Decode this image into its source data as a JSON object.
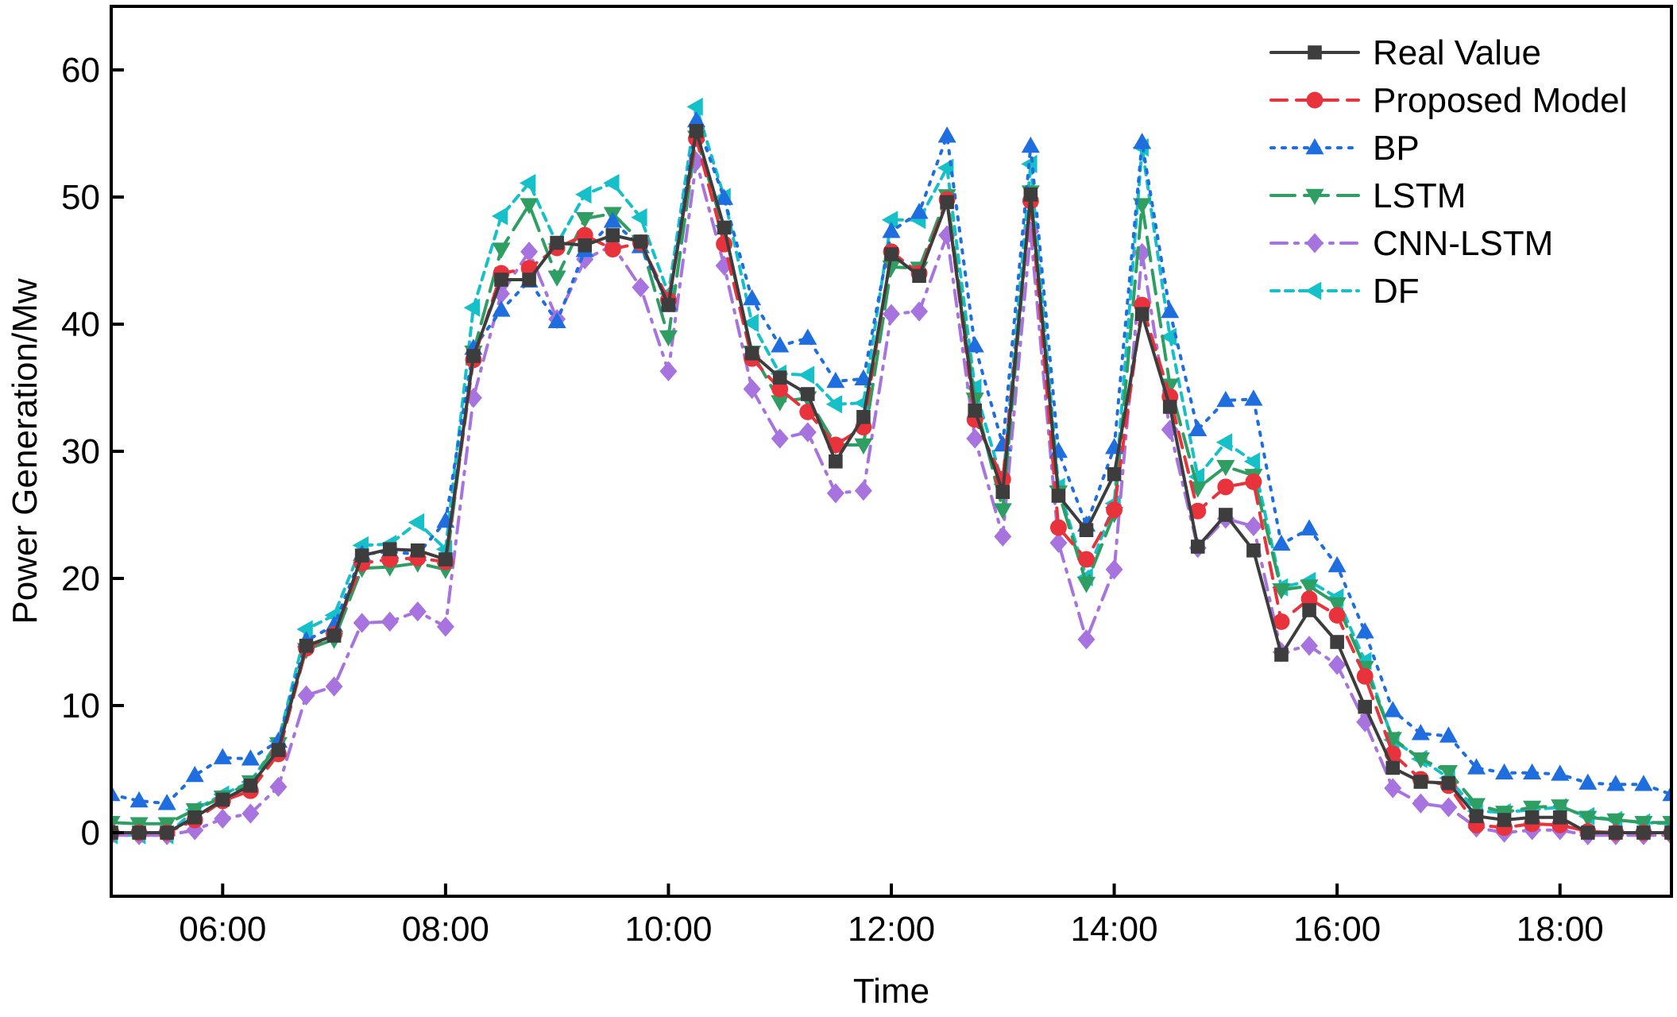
{
  "chart_data": {
    "type": "line",
    "title": "",
    "xlabel": "Time",
    "ylabel": "Power Generation/Mw",
    "xlim": [
      "05:00",
      "19:00"
    ],
    "ylim": [
      -5,
      65
    ],
    "x_ticks": [
      "06:00",
      "08:00",
      "10:00",
      "12:00",
      "14:00",
      "16:00",
      "18:00"
    ],
    "y_ticks": [
      0,
      10,
      20,
      30,
      40,
      50,
      60
    ],
    "x_interval_minutes": 15,
    "legend_position": "top-right",
    "grid": false,
    "x": [
      "05:00",
      "05:15",
      "05:30",
      "05:45",
      "06:00",
      "06:15",
      "06:30",
      "06:45",
      "07:00",
      "07:15",
      "07:30",
      "07:45",
      "08:00",
      "08:15",
      "08:30",
      "08:45",
      "09:00",
      "09:15",
      "09:30",
      "09:45",
      "10:00",
      "10:15",
      "10:30",
      "10:45",
      "11:00",
      "11:15",
      "11:30",
      "11:45",
      "12:00",
      "12:15",
      "12:30",
      "12:45",
      "13:00",
      "13:15",
      "13:30",
      "13:45",
      "14:00",
      "14:15",
      "14:30",
      "14:45",
      "15:00",
      "15:15",
      "15:30",
      "15:45",
      "16:00",
      "16:15",
      "16:30",
      "16:45",
      "17:00",
      "17:15",
      "17:30",
      "17:45",
      "18:00",
      "18:15",
      "18:30",
      "18:45",
      "19:00"
    ],
    "series": [
      {
        "name": "Real Value",
        "color": "#3d3d3d",
        "marker": "square",
        "dash": "solid",
        "values": [
          0,
          0,
          0,
          1.2,
          2.6,
          3.7,
          6.5,
          14.7,
          15.5,
          21.8,
          22.3,
          22.2,
          21.5,
          37.5,
          43.5,
          43.5,
          46.4,
          46.2,
          47,
          46.5,
          41.5,
          55.2,
          47.6,
          37.7,
          35.8,
          34.5,
          29.2,
          32.7,
          45.5,
          43.8,
          49.6,
          33.2,
          26.8,
          50.2,
          26.5,
          23.8,
          28.2,
          40.8,
          33.5,
          22.5,
          25,
          22.2,
          14,
          17.5,
          15,
          9.9,
          5.1,
          4,
          3.9,
          1.3,
          1,
          1.2,
          1.2,
          0,
          0,
          0,
          0
        ]
      },
      {
        "name": "Proposed Model",
        "color": "#e8323c",
        "marker": "circle",
        "dash": "dashed",
        "values": [
          0,
          0,
          0,
          1,
          2.5,
          3.3,
          6.2,
          14.5,
          15.6,
          21.2,
          21.5,
          21.6,
          21.3,
          37.2,
          44,
          44.4,
          46,
          47,
          45.9,
          46.4,
          41.9,
          54.6,
          46.3,
          37.3,
          34.9,
          33.1,
          30.5,
          31.9,
          45.7,
          44,
          49.8,
          32.5,
          27.8,
          49.7,
          24,
          21.5,
          25.4,
          41.5,
          34.3,
          25.3,
          27.2,
          27.6,
          16.6,
          18.4,
          17.1,
          12.3,
          6.2,
          4.2,
          3.7,
          0.6,
          0.4,
          0.7,
          0.6,
          0.1,
          0,
          0,
          0
        ]
      },
      {
        "name": "BP",
        "color": "#1f6ee0",
        "marker": "triangle-up",
        "dash": "dotted",
        "values": [
          3,
          2.5,
          2.3,
          4.5,
          5.9,
          5.8,
          7.2,
          15.1,
          16.3,
          21.9,
          22.1,
          21.9,
          24.5,
          38.1,
          41.1,
          43.4,
          40.2,
          45.8,
          48.1,
          46.1,
          41.6,
          56,
          49.9,
          42,
          38.3,
          38.9,
          35.5,
          35.7,
          47.3,
          48.8,
          54.8,
          38.3,
          30.5,
          54,
          30,
          24.2,
          30.3,
          54.3,
          41,
          31.7,
          34,
          34.1,
          22.7,
          23.9,
          21,
          15.8,
          9.6,
          7.8,
          7.6,
          5.1,
          4.7,
          4.7,
          4.6,
          3.9,
          3.8,
          3.8,
          3
        ]
      },
      {
        "name": "LSTM",
        "color": "#2e9e63",
        "marker": "triangle-down",
        "dash": "long-dash",
        "values": [
          0.8,
          0.7,
          0.7,
          1.8,
          2.8,
          4,
          7,
          14.4,
          15.2,
          20.8,
          20.9,
          21.2,
          20.7,
          37.8,
          45.9,
          49.4,
          43.7,
          48.3,
          48.7,
          46.5,
          39,
          54.7,
          47.3,
          37.8,
          33.9,
          34.2,
          30.5,
          30.5,
          44.5,
          44.4,
          50.1,
          34.1,
          25.4,
          50.4,
          26.8,
          19.6,
          25.1,
          49.4,
          35.2,
          27.1,
          28.8,
          28.1,
          19.1,
          19.4,
          18,
          13,
          7.4,
          5.8,
          4.8,
          2.2,
          1.6,
          2,
          2.1,
          1.2,
          1,
          0.8,
          0.8
        ]
      },
      {
        "name": "CNN-LSTM",
        "color": "#a773de",
        "marker": "diamond",
        "dash": "dash-dot",
        "values": [
          -0.2,
          -0.2,
          -0.2,
          0.2,
          1.1,
          1.5,
          3.6,
          10.8,
          11.5,
          16.5,
          16.6,
          17.4,
          16.2,
          34.2,
          42.4,
          45.7,
          40.4,
          45.1,
          46.2,
          42.9,
          36.3,
          52.8,
          44.6,
          34.9,
          31,
          31.5,
          26.7,
          26.9,
          40.8,
          41,
          47,
          31,
          23.3,
          47.3,
          22.8,
          15.2,
          20.7,
          45.6,
          31.7,
          22.4,
          24.7,
          24.1,
          14.2,
          14.7,
          13.2,
          8.7,
          3.5,
          2.3,
          2,
          0.4,
          0,
          0.2,
          0.2,
          -0.2,
          -0.2,
          -0.2,
          -0.2
        ]
      },
      {
        "name": "DF",
        "color": "#15c0c8",
        "marker": "triangle-left",
        "dash": "short-dash",
        "values": [
          -0.2,
          -0.2,
          -0.2,
          1.8,
          3,
          4,
          7.2,
          16,
          17.1,
          22.6,
          22.7,
          24.4,
          22.3,
          41.3,
          48.5,
          51.1,
          46.3,
          50.2,
          51.1,
          48.4,
          42.4,
          57.1,
          50,
          40.1,
          36.1,
          36,
          33.7,
          33.8,
          48.2,
          48.2,
          52.3,
          35,
          27.4,
          52.6,
          27.2,
          20.1,
          25.9,
          53.9,
          39,
          28,
          30.7,
          29.2,
          19.3,
          19.8,
          18.5,
          13.5,
          7.3,
          5.8,
          4.3,
          1.7,
          1.6,
          1.8,
          2,
          1.3,
          1,
          0.8,
          0.7
        ]
      }
    ]
  }
}
